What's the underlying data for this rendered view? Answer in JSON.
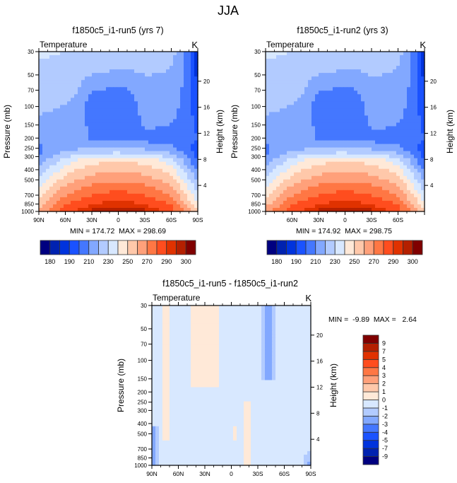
{
  "figure_title": "JJA",
  "chart_data": [
    {
      "type": "heatmap",
      "id": "run5",
      "title": "f1850c5_i1-run5 (yrs 7)",
      "left_string": "Temperature",
      "right_string": "K",
      "ylabel": "Pressure (mb)",
      "ylabel_right": "Height (km)",
      "x_ticks": [
        "90N",
        "60N",
        "30N",
        "0",
        "30S",
        "60S",
        "90S"
      ],
      "x_range": [
        90,
        -90
      ],
      "y_ticks": [
        30,
        50,
        70,
        100,
        150,
        200,
        250,
        300,
        400,
        500,
        700,
        850,
        1000
      ],
      "y_range_mb": [
        1000,
        30
      ],
      "y_right_ticks": [
        4,
        8,
        12,
        16,
        20
      ],
      "stats": "MIN = 174.72  MAX = 298.69",
      "min": 174.72,
      "max": 298.69,
      "colorbar": {
        "orientation": "horizontal",
        "labels": [
          "180",
          "190",
          "210",
          "230",
          "250",
          "270",
          "290",
          "300"
        ],
        "levels": [
          180,
          185,
          190,
          200,
          210,
          220,
          230,
          240,
          250,
          260,
          270,
          280,
          290,
          295,
          300
        ],
        "colors": [
          "#000080",
          "#0022b0",
          "#0033dd",
          "#1a52ff",
          "#4477ff",
          "#82a8ff",
          "#b2cbff",
          "#d8e8ff",
          "#ffe9d8",
          "#ffc8aa",
          "#ffa07a",
          "#ff7744",
          "#ff4d1e",
          "#e03200",
          "#b42000",
          "#800000"
        ]
      }
    },
    {
      "type": "heatmap",
      "id": "run2",
      "title": "f1850c5_i1-run2 (yrs 3)",
      "left_string": "Temperature",
      "right_string": "K",
      "ylabel": "Pressure (mb)",
      "ylabel_right": "Height (km)",
      "x_ticks": [
        "",
        "60N",
        "30N",
        "0",
        "30S",
        "60S",
        ""
      ],
      "x_range": [
        90,
        -90
      ],
      "y_ticks": [
        30,
        50,
        70,
        100,
        150,
        200,
        250,
        300,
        400,
        500,
        700,
        850,
        1000
      ],
      "y_range_mb": [
        1000,
        30
      ],
      "y_right_ticks": [
        4,
        8,
        12,
        16,
        20
      ],
      "stats": "MIN = 174.92  MAX = 298.75",
      "min": 174.92,
      "max": 298.75,
      "colorbar": {
        "orientation": "horizontal",
        "labels": [
          "180",
          "190",
          "210",
          "230",
          "250",
          "270",
          "290",
          "300"
        ],
        "levels": [
          180,
          185,
          190,
          200,
          210,
          220,
          230,
          240,
          250,
          260,
          270,
          280,
          290,
          295,
          300
        ],
        "colors": [
          "#000080",
          "#0022b0",
          "#0033dd",
          "#1a52ff",
          "#4477ff",
          "#82a8ff",
          "#b2cbff",
          "#d8e8ff",
          "#ffe9d8",
          "#ffc8aa",
          "#ffa07a",
          "#ff7744",
          "#ff4d1e",
          "#e03200",
          "#b42000",
          "#800000"
        ]
      }
    },
    {
      "type": "heatmap",
      "id": "diff",
      "title": "f1850c5_i1-run5 - f1850c5_i1-run2",
      "left_string": "Temperature",
      "right_string": "K",
      "ylabel": "Pressure (mb)",
      "ylabel_right": "Height (km)",
      "x_ticks": [
        "90N",
        "60N",
        "30N",
        "0",
        "30S",
        "60S",
        "90S"
      ],
      "x_range": [
        90,
        -90
      ],
      "y_ticks": [
        30,
        50,
        70,
        100,
        150,
        200,
        250,
        300,
        400,
        500,
        700,
        850,
        1000
      ],
      "y_range_mb": [
        1000,
        30
      ],
      "y_right_ticks": [
        4,
        8,
        12,
        16,
        20
      ],
      "stats": "MIN =  -9.89  MAX =   2.64",
      "min": -9.89,
      "max": 2.64,
      "colorbar": {
        "orientation": "vertical",
        "labels": [
          "-9",
          "-7",
          "-5",
          "-4",
          "-3",
          "-2",
          "-1",
          "0",
          "1",
          "2",
          "3",
          "4",
          "5",
          "7",
          "9"
        ],
        "levels": [
          -9,
          -7,
          -5,
          -4,
          -3,
          -2,
          -1,
          0,
          1,
          2,
          3,
          4,
          5,
          7,
          9
        ],
        "colors": [
          "#000080",
          "#0022b0",
          "#0033dd",
          "#1a52ff",
          "#4477ff",
          "#82a8ff",
          "#b2cbff",
          "#d8e8ff",
          "#ffe9d8",
          "#ffc8aa",
          "#ffa07a",
          "#ff7744",
          "#ff4d1e",
          "#e03200",
          "#b42000",
          "#800000"
        ]
      }
    }
  ]
}
